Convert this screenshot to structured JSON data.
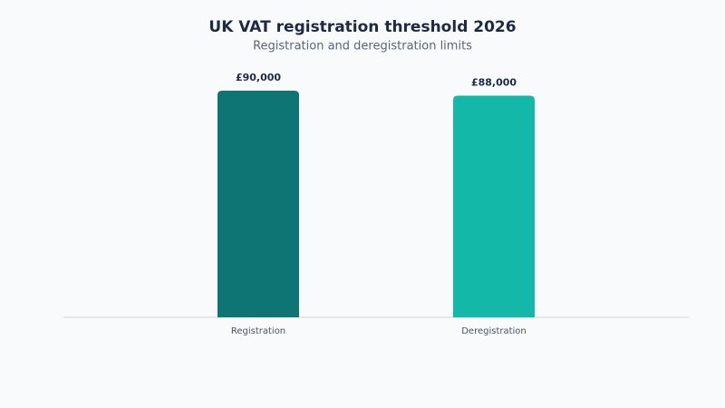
{
  "chart_data": {
    "type": "bar",
    "title": "UK VAT registration threshold 2026",
    "subtitle": "Registration and deregistration limits",
    "categories": [
      "Registration",
      "Deregistration"
    ],
    "values": [
      90000,
      88000
    ],
    "value_labels": [
      "£90,000",
      "£88,000"
    ],
    "colors": [
      "#0e7574",
      "#14b8a8"
    ],
    "ylim": [
      0,
      100000
    ]
  }
}
